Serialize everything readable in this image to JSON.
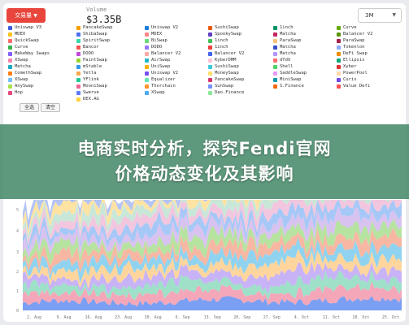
{
  "toolbar": {
    "venue_button": "交易量",
    "stat_label": "Volume",
    "stat_value": "$3.35B",
    "range_value": "3M"
  },
  "legend": {
    "columns": [
      [
        {
          "label": "Uniswap V3",
          "color": "#3b5bdb"
        },
        {
          "label": "MDEX",
          "color": "#fcc419"
        },
        {
          "label": "QuickSwap",
          "color": "#ff6b6b"
        },
        {
          "label": "Curve",
          "color": "#37b24d"
        },
        {
          "label": "MakeWay Swaps",
          "color": "#845ef7"
        },
        {
          "label": "XSwap",
          "color": "#f783ac"
        },
        {
          "label": "Matcha",
          "color": "#15aabf"
        },
        {
          "label": "ComethSwap",
          "color": "#fd7e14"
        },
        {
          "label": "XSwap",
          "color": "#74c0fc"
        },
        {
          "label": "AnySwap",
          "color": "#a9e34b"
        },
        {
          "label": "Hop",
          "color": "#e64980"
        }
      ],
      [
        {
          "label": "PancakeSwap",
          "color": "#f59f00"
        },
        {
          "label": "ShibaSwap",
          "color": "#4c6ef5"
        },
        {
          "label": "SpiritSwap",
          "color": "#38d9a9"
        },
        {
          "label": "Bancor",
          "color": "#fa5252"
        },
        {
          "label": "DODO",
          "color": "#be4bdb"
        },
        {
          "label": "PaintSwap",
          "color": "#94d82d"
        },
        {
          "label": "mStable",
          "color": "#339af0"
        },
        {
          "label": "Yetla",
          "color": "#ffa94d"
        },
        {
          "label": "YFlink",
          "color": "#20c997"
        },
        {
          "label": "MooniSwap",
          "color": "#f06595"
        },
        {
          "label": "Swerve",
          "color": "#5c7cfa"
        },
        {
          "label": "DEX.AG",
          "color": "#ffd43b"
        }
      ],
      [
        {
          "label": "Uniswap V2",
          "color": "#1c7ed6"
        },
        {
          "label": "MDEX",
          "color": "#ff8787"
        },
        {
          "label": "BiSwap",
          "color": "#69db7c"
        },
        {
          "label": "DODO",
          "color": "#9775fa"
        },
        {
          "label": "Balancer V2",
          "color": "#ffa8a8"
        },
        {
          "label": "AirSwap",
          "color": "#22b8cf"
        },
        {
          "label": "UniSwap",
          "color": "#fab005"
        },
        {
          "label": "Uniswap V2",
          "color": "#7950f2"
        },
        {
          "label": "Equalizer",
          "color": "#63e6be"
        },
        {
          "label": "Thorchain",
          "color": "#ff922b"
        },
        {
          "label": "XSwap",
          "color": "#4dabf7"
        }
      ],
      [
        {
          "label": "SushiSwap",
          "color": "#e8590c"
        },
        {
          "label": "SpookySwap",
          "color": "#5f3dc4"
        },
        {
          "label": "1inch",
          "color": "#40c057"
        },
        {
          "label": "1inch",
          "color": "#f03e3e"
        },
        {
          "label": "Balancer V2",
          "color": "#4263eb"
        },
        {
          "label": "KyberDMM",
          "color": "#fcc2d7"
        },
        {
          "label": "SushiSwap",
          "color": "#3bc9db"
        },
        {
          "label": "MoneySwap",
          "color": "#ffe066"
        },
        {
          "label": "PancakeSwap",
          "color": "#d6336c"
        },
        {
          "label": "SunSwap",
          "color": "#748ffc"
        },
        {
          "label": "Dao.Finance",
          "color": "#8ce99a"
        }
      ],
      [
        {
          "label": "1inch",
          "color": "#099268"
        },
        {
          "label": "Matcha",
          "color": "#c2255c"
        },
        {
          "label": "ParaSwap",
          "color": "#ffc078"
        },
        {
          "label": "Matcha",
          "color": "#364fc7"
        },
        {
          "label": "Matcha",
          "color": "#b197fc"
        },
        {
          "label": "dYdX",
          "color": "#ff6b6b"
        },
        {
          "label": "Shell",
          "color": "#51cf66"
        },
        {
          "label": "SaddleSwap",
          "color": "#e599f7"
        },
        {
          "label": "MiniSwap",
          "color": "#1098ad"
        },
        {
          "label": "S.Finance",
          "color": "#f76707"
        }
      ],
      [
        {
          "label": "Curve",
          "color": "#66a80f"
        },
        {
          "label": "Balancer V2",
          "color": "#5c940d"
        },
        {
          "label": "ParaSwap",
          "color": "#a61e4d"
        },
        {
          "label": "Tokenlon",
          "color": "#91a7ff"
        },
        {
          "label": "DeFi Swap",
          "color": "#f08c00"
        },
        {
          "label": "Ellipsis",
          "color": "#0ca678"
        },
        {
          "label": "Xyber",
          "color": "#e03131"
        },
        {
          "label": "PowerPool",
          "color": "#ffd8a8"
        },
        {
          "label": "Curix",
          "color": "#7048e8"
        },
        {
          "label": "Value Defi",
          "color": "#fa5252"
        }
      ]
    ]
  },
  "controls": {
    "select_all": "全选",
    "deselect": "清空"
  },
  "chart_data": {
    "type": "area",
    "y_ticks": [
      "5",
      "4",
      "3",
      "2",
      "1",
      "0"
    ],
    "ylim": [
      0,
      5
    ],
    "x_ticks": [
      "2. Aug",
      "9. Aug",
      "16. Aug",
      "23. Aug",
      "30. Aug",
      "6. Sep",
      "13. Sep",
      "20. Sep",
      "27. Sep",
      "4. Oct",
      "11. Oct",
      "18. Oct",
      "25. Oct"
    ]
  },
  "banner": {
    "line1": "电商实时分析，探究Fendi官网",
    "line2": "价格动态变化及其影响"
  }
}
